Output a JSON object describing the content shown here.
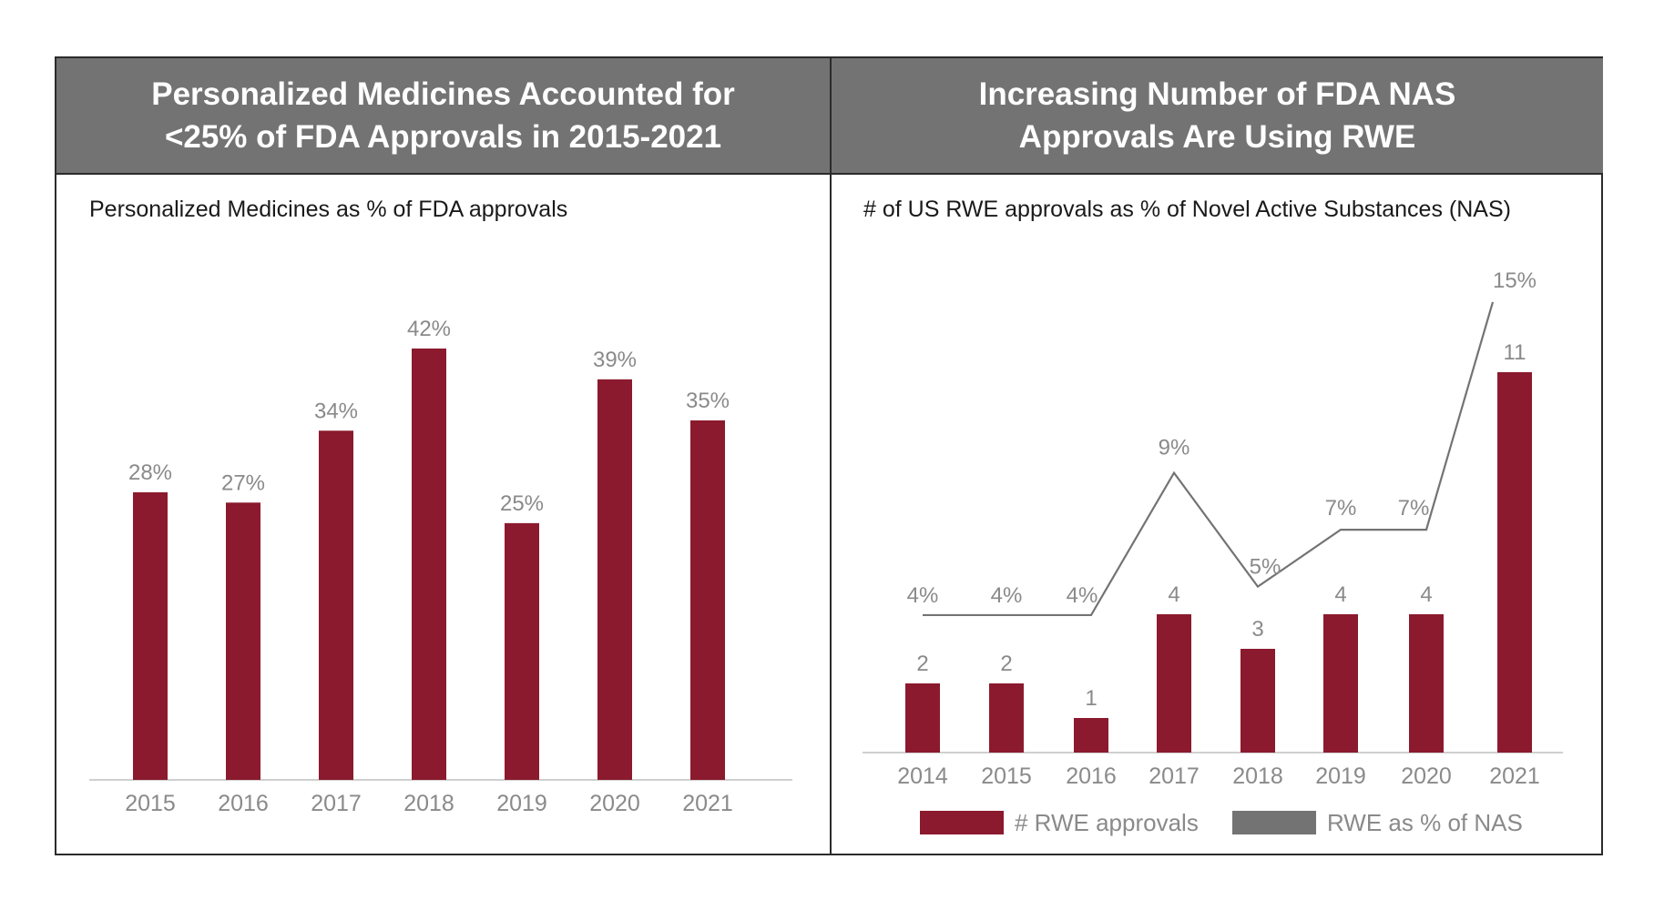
{
  "colors": {
    "bar": "#8b1a2e",
    "line": "#737373",
    "label": "#8a8a8a",
    "header_bg": "#737373"
  },
  "left_panel": {
    "title": "Personalized Medicines Accounted for <25% of FDA Approvals in 2015-2021",
    "subtitle": "Personalized Medicines as % of FDA approvals"
  },
  "right_panel": {
    "title": "Increasing Number of FDA NAS Approvals Are Using RWE",
    "subtitle": "# of US RWE approvals as % of Novel Active Substances (NAS)",
    "legend": [
      {
        "label": "# RWE approvals",
        "color": "#8b1a2e"
      },
      {
        "label": "RWE as % of NAS",
        "color": "#737373"
      }
    ]
  },
  "chart_data": [
    {
      "type": "bar",
      "title": "Personalized Medicines as % of FDA approvals",
      "categories": [
        "2015",
        "2016",
        "2017",
        "2018",
        "2019",
        "2020",
        "2021"
      ],
      "values": [
        28,
        27,
        34,
        42,
        25,
        39,
        35
      ],
      "data_labels": [
        "28%",
        "27%",
        "34%",
        "42%",
        "25%",
        "39%",
        "35%"
      ],
      "ylim": [
        0,
        42
      ],
      "xlabel": "",
      "ylabel": "",
      "grid": false
    },
    {
      "type": "bar",
      "title": "# of US RWE approvals as % of Novel Active Substances (NAS)",
      "categories": [
        "2014",
        "2015",
        "2016",
        "2017",
        "2018",
        "2019",
        "2020",
        "2021"
      ],
      "series": [
        {
          "name": "# RWE approvals",
          "type": "bar",
          "values": [
            2,
            2,
            1,
            4,
            3,
            4,
            4,
            11
          ],
          "data_labels": [
            "2",
            "2",
            "1",
            "4",
            "3",
            "4",
            "4",
            "11"
          ]
        },
        {
          "name": "RWE as % of NAS",
          "type": "line",
          "values": [
            4,
            4,
            4,
            9,
            5,
            7,
            7,
            15
          ],
          "data_labels": [
            "4%",
            "4%",
            "4%",
            "9%",
            "5%",
            "7%",
            "7%",
            "15%"
          ]
        }
      ],
      "legend_position": "bottom",
      "grid": false
    }
  ]
}
